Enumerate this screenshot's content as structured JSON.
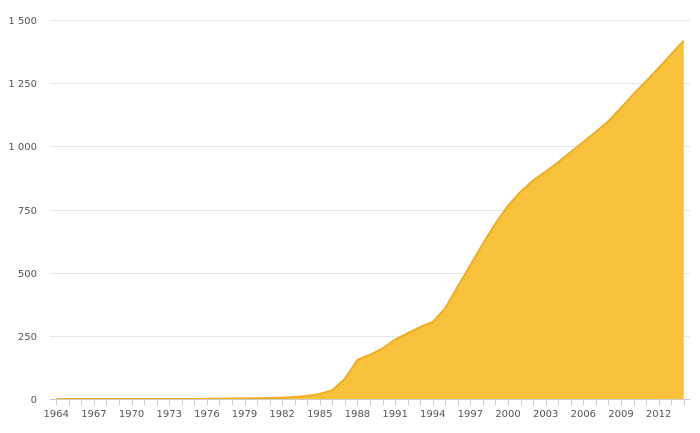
{
  "chart_data": {
    "type": "area",
    "title": "",
    "xlabel": "",
    "ylabel": "",
    "x_tick_labels": [
      "1964",
      "1967",
      "1970",
      "1973",
      "1976",
      "1979",
      "1982",
      "1985",
      "1988",
      "1991",
      "1994",
      "1997",
      "2000",
      "2003",
      "2006",
      "2009",
      "2012"
    ],
    "y_tick_labels": [
      "0",
      "250",
      "500",
      "750",
      "1 000",
      "1 250",
      "1 500"
    ],
    "y_ticks": [
      0,
      250,
      500,
      750,
      1000,
      1250,
      1500
    ],
    "xlim": [
      1963.5,
      2014.5
    ],
    "ylim": [
      0,
      1500
    ],
    "grid": true,
    "colors": {
      "fill": "#f9c23c",
      "line": "#f2ad1a"
    },
    "series": [
      {
        "x": [
          1964,
          1965,
          1966,
          1967,
          1968,
          1969,
          1970,
          1971,
          1972,
          1973,
          1974,
          1975,
          1976,
          1977,
          1978,
          1979,
          1980,
          1981,
          1982,
          1983,
          1984,
          1985,
          1986,
          1987,
          1988,
          1989,
          1990,
          1991,
          1992,
          1993,
          1994,
          1995,
          1996,
          1997,
          1998,
          1999,
          2000,
          2001,
          2002,
          2003,
          2004,
          2005,
          2006,
          2007,
          2008,
          2009,
          2010,
          2011,
          2012,
          2013,
          2014
        ],
        "values": [
          0,
          0,
          0,
          0,
          0,
          0,
          0,
          0,
          0,
          0,
          0,
          0,
          1,
          1,
          2,
          2,
          3,
          4,
          5,
          8,
          12,
          20,
          35,
          80,
          155,
          175,
          200,
          235,
          260,
          285,
          305,
          360,
          445,
          530,
          615,
          695,
          765,
          820,
          865,
          900,
          937,
          978,
          1017,
          1057,
          1100,
          1152,
          1207,
          1258,
          1310,
          1365,
          1418
        ]
      }
    ]
  }
}
